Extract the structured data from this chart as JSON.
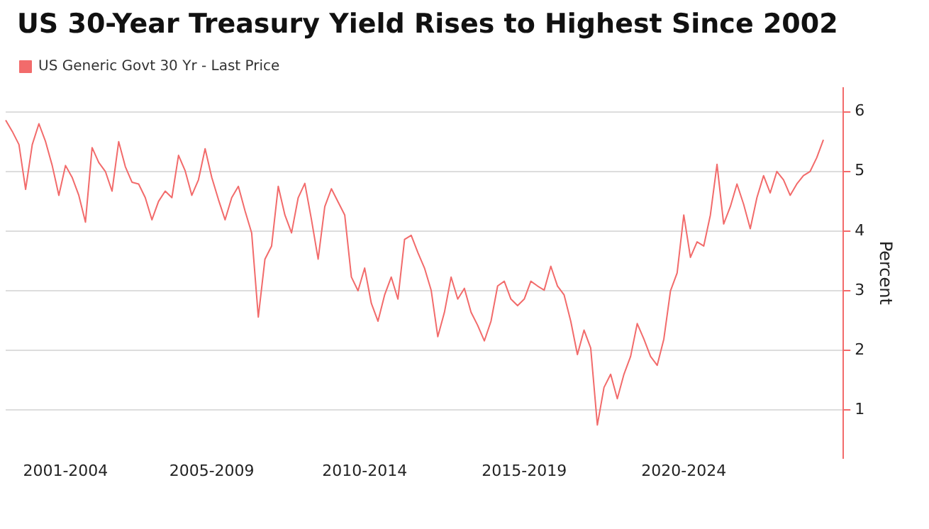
{
  "chart_data": {
    "type": "line",
    "title": "US 30-Year Treasury Yield Rises to Highest Since 2002",
    "y2label": "Percent",
    "legend": "top left",
    "grid": "y",
    "marker": "none",
    "line_style": "solid",
    "categories": [
      null,
      null,
      null,
      null,
      null,
      null,
      null,
      null,
      null,
      "2001-2004",
      null,
      null,
      null,
      null,
      null,
      null,
      null,
      null,
      null,
      null,
      null,
      null,
      null,
      null,
      null,
      null,
      null,
      null,
      null,
      null,
      null,
      "2005-2009",
      null,
      null,
      null,
      null,
      null,
      null,
      null,
      null,
      null,
      null,
      null,
      null,
      null,
      null,
      null,
      null,
      null,
      null,
      null,
      null,
      null,
      null,
      "2010-2014",
      null,
      null,
      null,
      null,
      null,
      null,
      null,
      null,
      null,
      null,
      null,
      null,
      null,
      null,
      null,
      null,
      null,
      null,
      null,
      null,
      null,
      null,
      null,
      "2015-2019",
      null,
      null,
      null,
      null,
      null,
      null,
      null,
      null,
      null,
      null,
      null,
      null,
      null,
      null,
      null,
      null,
      null,
      null,
      null,
      null,
      null,
      null,
      null,
      "2020-2024",
      null,
      null,
      null,
      null,
      null,
      null,
      null,
      null,
      null,
      null,
      null,
      null,
      null,
      null,
      null,
      null,
      null,
      null,
      null,
      null,
      null,
      null,
      null,
      null
    ],
    "y2lim": [
      0.2,
      6.4
    ],
    "y2ticks": [
      1,
      2,
      3,
      4,
      5,
      6
    ],
    "series": [
      {
        "name": "US Generic Govt 30 Yr - Last Price",
        "color": "#f26b6b",
        "axis": "y2",
        "values": [
          5.86,
          5.67,
          5.45,
          4.7,
          5.45,
          5.8,
          5.5,
          5.1,
          4.6,
          5.1,
          4.9,
          4.6,
          4.15,
          5.4,
          5.15,
          5.0,
          4.67,
          5.5,
          5.08,
          4.82,
          4.79,
          4.56,
          4.19,
          4.5,
          4.67,
          4.56,
          5.27,
          5.01,
          4.6,
          4.86,
          5.38,
          4.9,
          4.53,
          4.19,
          4.56,
          4.75,
          4.34,
          3.97,
          2.56,
          3.53,
          3.75,
          4.75,
          4.27,
          3.97,
          4.56,
          4.8,
          4.19,
          3.53,
          4.41,
          4.71,
          4.49,
          4.27,
          3.23,
          3.0,
          3.38,
          2.79,
          2.49,
          2.93,
          3.23,
          2.86,
          3.86,
          3.93,
          3.64,
          3.38,
          3.01,
          2.23,
          2.64,
          3.23,
          2.86,
          3.04,
          2.64,
          2.42,
          2.16,
          2.49,
          3.08,
          3.16,
          2.86,
          2.75,
          2.86,
          3.16,
          3.08,
          3.01,
          3.41,
          3.08,
          2.93,
          2.49,
          1.93,
          2.34,
          2.04,
          0.75,
          1.38,
          1.6,
          1.19,
          1.6,
          1.9,
          2.45,
          2.19,
          1.9,
          1.75,
          2.19,
          3.0,
          3.3,
          4.27,
          3.56,
          3.82,
          3.75,
          4.27,
          5.12,
          4.12,
          4.41,
          4.79,
          4.45,
          4.04,
          4.56,
          4.93,
          4.64,
          5.0,
          4.86,
          4.6,
          4.79,
          4.93,
          5.0,
          5.23,
          5.53,
          null,
          null,
          null
        ]
      }
    ]
  }
}
